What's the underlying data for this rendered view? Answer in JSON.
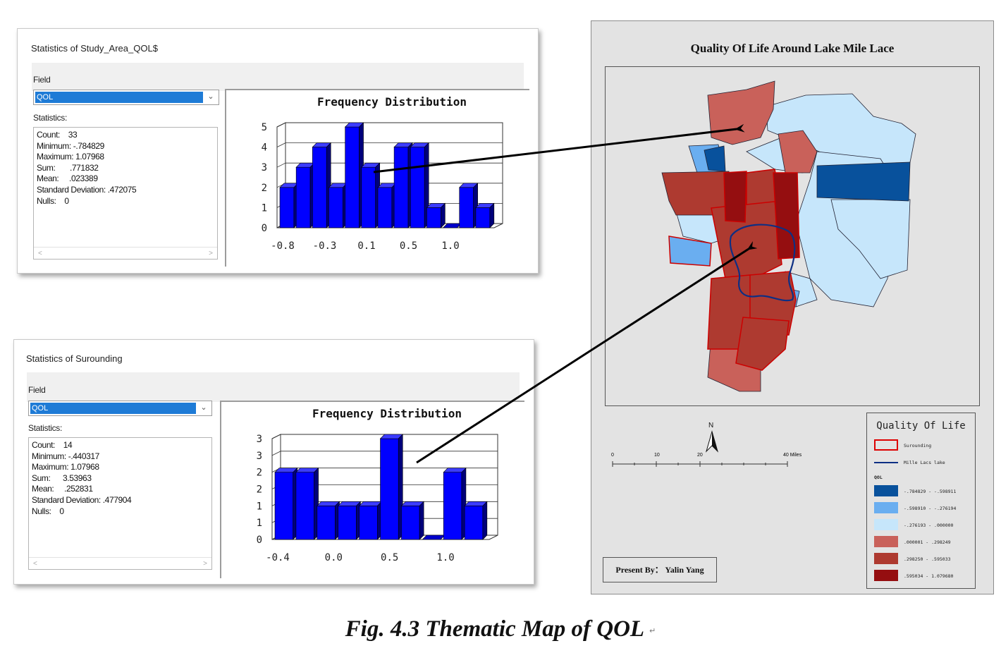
{
  "dialog1": {
    "title": "Statistics of Study_Area_QOL$",
    "field_label": "Field",
    "field_value": "QOL",
    "stats_label": "Statistics:",
    "stats": [
      "Count:    33",
      "Minimum: -.784829",
      "Maximum: 1.07968",
      "Sum:       .771832",
      "Mean:     .023389",
      "Standard Deviation: .472075",
      "Nulls:    0"
    ],
    "chart_title": "Frequency Distribution"
  },
  "dialog2": {
    "title": "Statistics of Surounding",
    "field_label": "Field",
    "field_value": "QOL",
    "stats_label": "Statistics:",
    "stats": [
      "Count:    14",
      "Minimum: -.440317",
      "Maximum: 1.07968",
      "Sum:      3.53963",
      "Mean:     .252831",
      "Standard Deviation: .477904",
      "Nulls:    0"
    ],
    "chart_title": "Frequency Distribution"
  },
  "chart_data": [
    {
      "type": "bar",
      "title": "Frequency Distribution",
      "xlabel": "",
      "ylabel": "",
      "bar_color": "#0000ff",
      "values": [
        2,
        3,
        4,
        2,
        5,
        3,
        2,
        4,
        4,
        1,
        0,
        2,
        1
      ],
      "x_ticks": [
        "-0.8",
        "-0.3",
        "0.1",
        "0.5",
        "1.0"
      ],
      "y_ticks": [
        "0",
        "1",
        "2",
        "3",
        "4",
        "5"
      ],
      "ylim": [
        0,
        5
      ],
      "grid": true
    },
    {
      "type": "bar",
      "title": "Frequency Distribution",
      "xlabel": "",
      "ylabel": "",
      "bar_color": "#0000ff",
      "values": [
        2,
        2,
        1,
        1,
        1,
        3,
        1,
        0,
        2,
        1
      ],
      "x_ticks": [
        "-0.4",
        "0.0",
        "0.5",
        "1.0"
      ],
      "y_ticks": [
        "0",
        "1",
        "1",
        "2",
        "2",
        "3",
        "3"
      ],
      "ylim": [
        0,
        3
      ],
      "grid": true
    }
  ],
  "map": {
    "title": "Quality Of Life Around Lake Mile Lace",
    "north": "N",
    "scale_labels": [
      "0",
      "10",
      "20",
      "40 Miles"
    ],
    "presented_by": "Present By：  Yalin Yang",
    "legend": {
      "title": "Quality Of Life",
      "surrounding_label": "Surounding",
      "lake_label": "Mille Lacs lake",
      "field_label": "QOL",
      "classes": [
        {
          "label": "-.784829 - -.598911",
          "color": "#08519c"
        },
        {
          "label": "-.598910 - -.276194",
          "color": "#6aaef0"
        },
        {
          "label": "-.276193 - .000000",
          "color": "#c6e6fb"
        },
        {
          "label": ".000001 - .298249",
          "color": "#c9615a"
        },
        {
          "label": ".298250 - .595033",
          "color": "#ae3a30"
        },
        {
          "label": ".595034 - 1.079680",
          "color": "#950e10"
        }
      ]
    }
  },
  "caption": {
    "text": "Fig. 4.3 Thematic Map of QOL",
    "mark": "↵"
  }
}
